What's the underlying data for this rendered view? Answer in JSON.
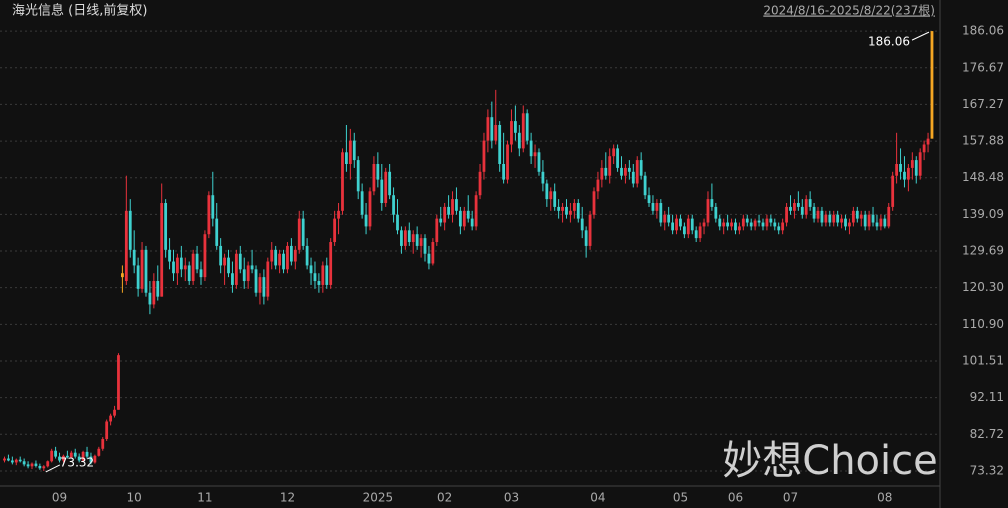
{
  "chart_data": {
    "type": "candlestick",
    "title": "海光信息 (日线,前复权)",
    "subtitle": "2024/8/16-2025/8/22(237根)",
    "watermark": "妙想Choice",
    "max_label": "186.06",
    "min_label": "73.32",
    "up_color": "#e8323c",
    "down_color": "#3fd1cf",
    "highlight_color": "#f5a623",
    "highlight": [
      30,
      236
    ],
    "ylim": [
      69.46,
      194.04
    ],
    "yticks": [
      73.32,
      82.72,
      92.11,
      101.51,
      {
        "value": 110.9,
        "label": "110.90"
      },
      {
        "value": 120.3,
        "label": "120.30"
      },
      129.69,
      139.09,
      148.48,
      157.88,
      167.27,
      176.67,
      186.06
    ],
    "grid": true,
    "categories": [
      null,
      null,
      null,
      null,
      null,
      null,
      null,
      null,
      null,
      null,
      null,
      null,
      null,
      null,
      "09",
      null,
      null,
      null,
      null,
      null,
      null,
      null,
      null,
      null,
      null,
      null,
      null,
      null,
      null,
      null,
      null,
      null,
      null,
      "10",
      null,
      null,
      null,
      null,
      null,
      null,
      null,
      null,
      null,
      null,
      null,
      null,
      null,
      null,
      null,
      null,
      null,
      "11",
      null,
      null,
      null,
      null,
      null,
      null,
      null,
      null,
      null,
      null,
      null,
      null,
      null,
      null,
      null,
      null,
      null,
      null,
      null,
      null,
      "12",
      null,
      null,
      null,
      null,
      null,
      null,
      null,
      null,
      null,
      null,
      null,
      null,
      null,
      null,
      null,
      null,
      null,
      null,
      null,
      null,
      null,
      null,
      "2025",
      null,
      null,
      null,
      null,
      null,
      null,
      null,
      null,
      null,
      null,
      null,
      null,
      null,
      null,
      null,
      null,
      "02",
      null,
      null,
      null,
      null,
      null,
      null,
      null,
      null,
      null,
      null,
      null,
      null,
      null,
      null,
      null,
      null,
      "03",
      null,
      null,
      null,
      null,
      null,
      null,
      null,
      null,
      null,
      null,
      null,
      null,
      null,
      null,
      null,
      null,
      null,
      null,
      null,
      null,
      null,
      "04",
      null,
      null,
      null,
      null,
      null,
      null,
      null,
      null,
      null,
      null,
      null,
      null,
      null,
      null,
      null,
      null,
      null,
      null,
      null,
      null,
      "05",
      null,
      null,
      null,
      null,
      null,
      null,
      null,
      null,
      null,
      null,
      null,
      null,
      null,
      "06",
      null,
      null,
      null,
      null,
      null,
      null,
      null,
      null,
      null,
      null,
      null,
      null,
      null,
      "07",
      null,
      null,
      null,
      null,
      null,
      null,
      null,
      null,
      null,
      null,
      null,
      null,
      null,
      null,
      null,
      null,
      null,
      null,
      null,
      null,
      null,
      null,
      null,
      "08",
      null,
      null,
      null,
      null,
      null,
      null,
      null,
      null,
      null,
      null,
      null,
      null
    ],
    "candles": [
      [
        76,
        77,
        75.5,
        76.5
      ],
      [
        76.5,
        77.5,
        75.8,
        76
      ],
      [
        76,
        77,
        75,
        75.5
      ],
      [
        75.5,
        76.5,
        74.8,
        76.2
      ],
      [
        76.2,
        77,
        75.5,
        75.8
      ],
      [
        75.8,
        76.5,
        74.5,
        75
      ],
      [
        75,
        75.8,
        74,
        74.5
      ],
      [
        74.5,
        75.5,
        73.8,
        75.2
      ],
      [
        75.2,
        76,
        74.2,
        74.6
      ],
      [
        74.6,
        75.2,
        73.6,
        74
      ],
      [
        74,
        74.8,
        73.32,
        74.5
      ],
      [
        74.5,
        76,
        74.2,
        75.8
      ],
      [
        75.8,
        79,
        75.5,
        78.5
      ],
      [
        78.5,
        79.5,
        76.5,
        77
      ],
      [
        77,
        78,
        75.5,
        76
      ],
      [
        76,
        77.5,
        75.5,
        77.2
      ],
      [
        77.2,
        78.5,
        76.5,
        76.8
      ],
      [
        76.8,
        78.5,
        76.5,
        78
      ],
      [
        78,
        79,
        76.5,
        77
      ],
      [
        77,
        77.8,
        75.5,
        76
      ],
      [
        76,
        78.5,
        75.8,
        78.2
      ],
      [
        78.2,
        79.5,
        76.5,
        77
      ],
      [
        77,
        78,
        75,
        75.5
      ],
      [
        75.5,
        77.5,
        75.2,
        77.2
      ],
      [
        77.2,
        79.5,
        77,
        79
      ],
      [
        79,
        82,
        78.5,
        81.5
      ],
      [
        81.5,
        86.5,
        81,
        86
      ],
      [
        86,
        88,
        85,
        87.5
      ],
      [
        87.5,
        90,
        87,
        89
      ],
      [
        89,
        103.5,
        89,
        103
      ],
      [
        123,
        126,
        119,
        124
      ],
      [
        122,
        149,
        121,
        140
      ],
      [
        140,
        143,
        128,
        130
      ],
      [
        130,
        135,
        124,
        126
      ],
      [
        126,
        128,
        118,
        120
      ],
      [
        120,
        132,
        119,
        130
      ],
      [
        130,
        131,
        118,
        119
      ],
      [
        119,
        122,
        113.5,
        116
      ],
      [
        116,
        124,
        115,
        122
      ],
      [
        122,
        126,
        117,
        118
      ],
      [
        118,
        147,
        118,
        142
      ],
      [
        142,
        143,
        128,
        130
      ],
      [
        130,
        133,
        125,
        127
      ],
      [
        127,
        130,
        122,
        124
      ],
      [
        124,
        129,
        121,
        128
      ],
      [
        128,
        131,
        123,
        125
      ],
      [
        125,
        128,
        122,
        126
      ],
      [
        126,
        127,
        121,
        122
      ],
      [
        122,
        130,
        121,
        129
      ],
      [
        129,
        131,
        124,
        125
      ],
      [
        125,
        127,
        121,
        123
      ],
      [
        123,
        135,
        122,
        134
      ],
      [
        134,
        145,
        133,
        144
      ],
      [
        144,
        150,
        136,
        138
      ],
      [
        138,
        142,
        130,
        131
      ],
      [
        131,
        133,
        124,
        126
      ],
      [
        126,
        129,
        121,
        128
      ],
      [
        128,
        130,
        123,
        124
      ],
      [
        124,
        127,
        119,
        121
      ],
      [
        121,
        130,
        120,
        129
      ],
      [
        129,
        131,
        124,
        125
      ],
      [
        125,
        128,
        120,
        122
      ],
      [
        122,
        127,
        120,
        126
      ],
      [
        126,
        130,
        124,
        125
      ],
      [
        125,
        126,
        118,
        119
      ],
      [
        119,
        124,
        116,
        123
      ],
      [
        123,
        125,
        116,
        118
      ],
      [
        118,
        128,
        117,
        127
      ],
      [
        127,
        132,
        125,
        130
      ],
      [
        130,
        131,
        125,
        126
      ],
      [
        126,
        130,
        124,
        129
      ],
      [
        129,
        130,
        124,
        125
      ],
      [
        125,
        132,
        124,
        131
      ],
      [
        131,
        133,
        126,
        127
      ],
      [
        127,
        131,
        125,
        130
      ],
      [
        130,
        140,
        129,
        138
      ],
      [
        138,
        140,
        130,
        131
      ],
      [
        131,
        133,
        125,
        126
      ],
      [
        126,
        128,
        121,
        124
      ],
      [
        124,
        127,
        120,
        122
      ],
      [
        122,
        124,
        119,
        121
      ],
      [
        121,
        127,
        119,
        126
      ],
      [
        126,
        128,
        120,
        121
      ],
      [
        121,
        133,
        120,
        132
      ],
      [
        132,
        140,
        131,
        138
      ],
      [
        138,
        142,
        134,
        140
      ],
      [
        140,
        156,
        139,
        155
      ],
      [
        155,
        162,
        150,
        152
      ],
      [
        152,
        161,
        148,
        158
      ],
      [
        158,
        160,
        151,
        153
      ],
      [
        153,
        154,
        143,
        145
      ],
      [
        145,
        147,
        138,
        139
      ],
      [
        139,
        142,
        134,
        136
      ],
      [
        136,
        146,
        135,
        145
      ],
      [
        145,
        154,
        144,
        152
      ],
      [
        152,
        155,
        146,
        148
      ],
      [
        148,
        152,
        140,
        142
      ],
      [
        142,
        151,
        141,
        150
      ],
      [
        150,
        152,
        143,
        144
      ],
      [
        144,
        146,
        137,
        139
      ],
      [
        139,
        143,
        134,
        135
      ],
      [
        135,
        136,
        129,
        131
      ],
      [
        131,
        136,
        130,
        135
      ],
      [
        135,
        137,
        131,
        132
      ],
      [
        132,
        135,
        129,
        134
      ],
      [
        134,
        136,
        130,
        131
      ],
      [
        131,
        134,
        128,
        133
      ],
      [
        133,
        134,
        127,
        129
      ],
      [
        129,
        131,
        125,
        126.5
      ],
      [
        126.5,
        133,
        126,
        132
      ],
      [
        132,
        139,
        131,
        138
      ],
      [
        138,
        141,
        136,
        137
      ],
      [
        137,
        142,
        135,
        141
      ],
      [
        141,
        144,
        138,
        139
      ],
      [
        139,
        145,
        137,
        143
      ],
      [
        143,
        146,
        139,
        140
      ],
      [
        140,
        141,
        134,
        136
      ],
      [
        136,
        141,
        135,
        140
      ],
      [
        140,
        144,
        137,
        138
      ],
      [
        138,
        140,
        135,
        136
      ],
      [
        136,
        145,
        135,
        144
      ],
      [
        144,
        152,
        143,
        150
      ],
      [
        150,
        160,
        148,
        158
      ],
      [
        158,
        166,
        155,
        164
      ],
      [
        164,
        168,
        156,
        158
      ],
      [
        158,
        171,
        157,
        162
      ],
      [
        162,
        163,
        150,
        152
      ],
      [
        152,
        160,
        147,
        148
      ],
      [
        148,
        158,
        147,
        157
      ],
      [
        157,
        166,
        155,
        163
      ],
      [
        163,
        167,
        158,
        160
      ],
      [
        160,
        162,
        154,
        156
      ],
      [
        156,
        167,
        155,
        165
      ],
      [
        165,
        166,
        157,
        158
      ],
      [
        158,
        160,
        152,
        154
      ],
      [
        154,
        157,
        151,
        155
      ],
      [
        155,
        156,
        149,
        150
      ],
      [
        150,
        153,
        145,
        147
      ],
      [
        147,
        148,
        141,
        143
      ],
      [
        143,
        146,
        140,
        145
      ],
      [
        145,
        147,
        140,
        141
      ],
      [
        141,
        143,
        138,
        140
      ],
      [
        140,
        142,
        137,
        141
      ],
      [
        141,
        143,
        138,
        139
      ],
      [
        139,
        142,
        137,
        140
      ],
      [
        140,
        143,
        138,
        142
      ],
      [
        142,
        143,
        137,
        138
      ],
      [
        138,
        141,
        133,
        135
      ],
      [
        135,
        136,
        128,
        131
      ],
      [
        131,
        140,
        130,
        139
      ],
      [
        139,
        146,
        138,
        145
      ],
      [
        145,
        150,
        143,
        148
      ],
      [
        148,
        153,
        146,
        151
      ],
      [
        151,
        155,
        148,
        149
      ],
      [
        149,
        156,
        147,
        154
      ],
      [
        154,
        157,
        152,
        156
      ],
      [
        156,
        157,
        150,
        151
      ],
      [
        151,
        154,
        148,
        149
      ],
      [
        149,
        152,
        147,
        151
      ],
      [
        151,
        153,
        148,
        150
      ],
      [
        150,
        152,
        146,
        147
      ],
      [
        147,
        154,
        146,
        153
      ],
      [
        153,
        155,
        148,
        149
      ],
      [
        149,
        150,
        143,
        144
      ],
      [
        144,
        146,
        141,
        142
      ],
      [
        142,
        144,
        139,
        140
      ],
      [
        140,
        143,
        138,
        142
      ],
      [
        142,
        143,
        136,
        137
      ],
      [
        137,
        140,
        135,
        139
      ],
      [
        139,
        141,
        136,
        137
      ],
      [
        137,
        139,
        134,
        135
      ],
      [
        135,
        139,
        134,
        138
      ],
      [
        138,
        139,
        135,
        136
      ],
      [
        136,
        137,
        133,
        134
      ],
      [
        134,
        139,
        133,
        138
      ],
      [
        138,
        139,
        134,
        135
      ],
      [
        135,
        136,
        132,
        133
      ],
      [
        133,
        137,
        132,
        136
      ],
      [
        136,
        138,
        134,
        137
      ],
      [
        137,
        145,
        136,
        143
      ],
      [
        143,
        147,
        140,
        141
      ],
      [
        141,
        142,
        137,
        138
      ],
      [
        138,
        139,
        135,
        136
      ],
      [
        136,
        138,
        134,
        137
      ],
      [
        137,
        139,
        135,
        136
      ],
      [
        136,
        138,
        135,
        137
      ],
      [
        137,
        138,
        134,
        135
      ],
      [
        135,
        137,
        134,
        136
      ],
      [
        136,
        139,
        135,
        138
      ],
      [
        138,
        139,
        136,
        137
      ],
      [
        137,
        138,
        135,
        136
      ],
      [
        136,
        138,
        135,
        137.5
      ],
      [
        137.5,
        139,
        136,
        137
      ],
      [
        137,
        138,
        135,
        136
      ],
      [
        136,
        139,
        135,
        138
      ],
      [
        138,
        139,
        136,
        137
      ],
      [
        137,
        138,
        135,
        136
      ],
      [
        136,
        137,
        134,
        135
      ],
      [
        135,
        138,
        134,
        137
      ],
      [
        137,
        142,
        136,
        141
      ],
      [
        141,
        144,
        139,
        140
      ],
      [
        140,
        143,
        138,
        142
      ],
      [
        142,
        145,
        140,
        141
      ],
      [
        141,
        143,
        138,
        139
      ],
      [
        139,
        144,
        138,
        143
      ],
      [
        143,
        145,
        140,
        141
      ],
      [
        141,
        142,
        137,
        138
      ],
      [
        138,
        141,
        137,
        140
      ],
      [
        140,
        141,
        136,
        137
      ],
      [
        137,
        140,
        136,
        139
      ],
      [
        139,
        140,
        136,
        137
      ],
      [
        137,
        140,
        136,
        139
      ],
      [
        139,
        140,
        136,
        137
      ],
      [
        137,
        139,
        135.5,
        138
      ],
      [
        138,
        139,
        135,
        136
      ],
      [
        136,
        138,
        134,
        137
      ],
      [
        137,
        141,
        136,
        140
      ],
      [
        140,
        141,
        137,
        138
      ],
      [
        138,
        140,
        136,
        139
      ],
      [
        139,
        140,
        135,
        136
      ],
      [
        136,
        140,
        135,
        139
      ],
      [
        139,
        141,
        136,
        137
      ],
      [
        137,
        139,
        135,
        136
      ],
      [
        136,
        139,
        135,
        138
      ],
      [
        138,
        139,
        135.5,
        136
      ],
      [
        136,
        142,
        135.5,
        141
      ],
      [
        141,
        150,
        140,
        149
      ],
      [
        149,
        160,
        147,
        152
      ],
      [
        152,
        156,
        148,
        150
      ],
      [
        150,
        154,
        146,
        148
      ],
      [
        148,
        152,
        145,
        151
      ],
      [
        151,
        155,
        148,
        153
      ],
      [
        153,
        154,
        147,
        149
      ],
      [
        149,
        156,
        148,
        155
      ],
      [
        155,
        158,
        153,
        157
      ],
      [
        157,
        160,
        155,
        158.5
      ],
      [
        158.5,
        186.06,
        158.5,
        186.06
      ]
    ]
  }
}
